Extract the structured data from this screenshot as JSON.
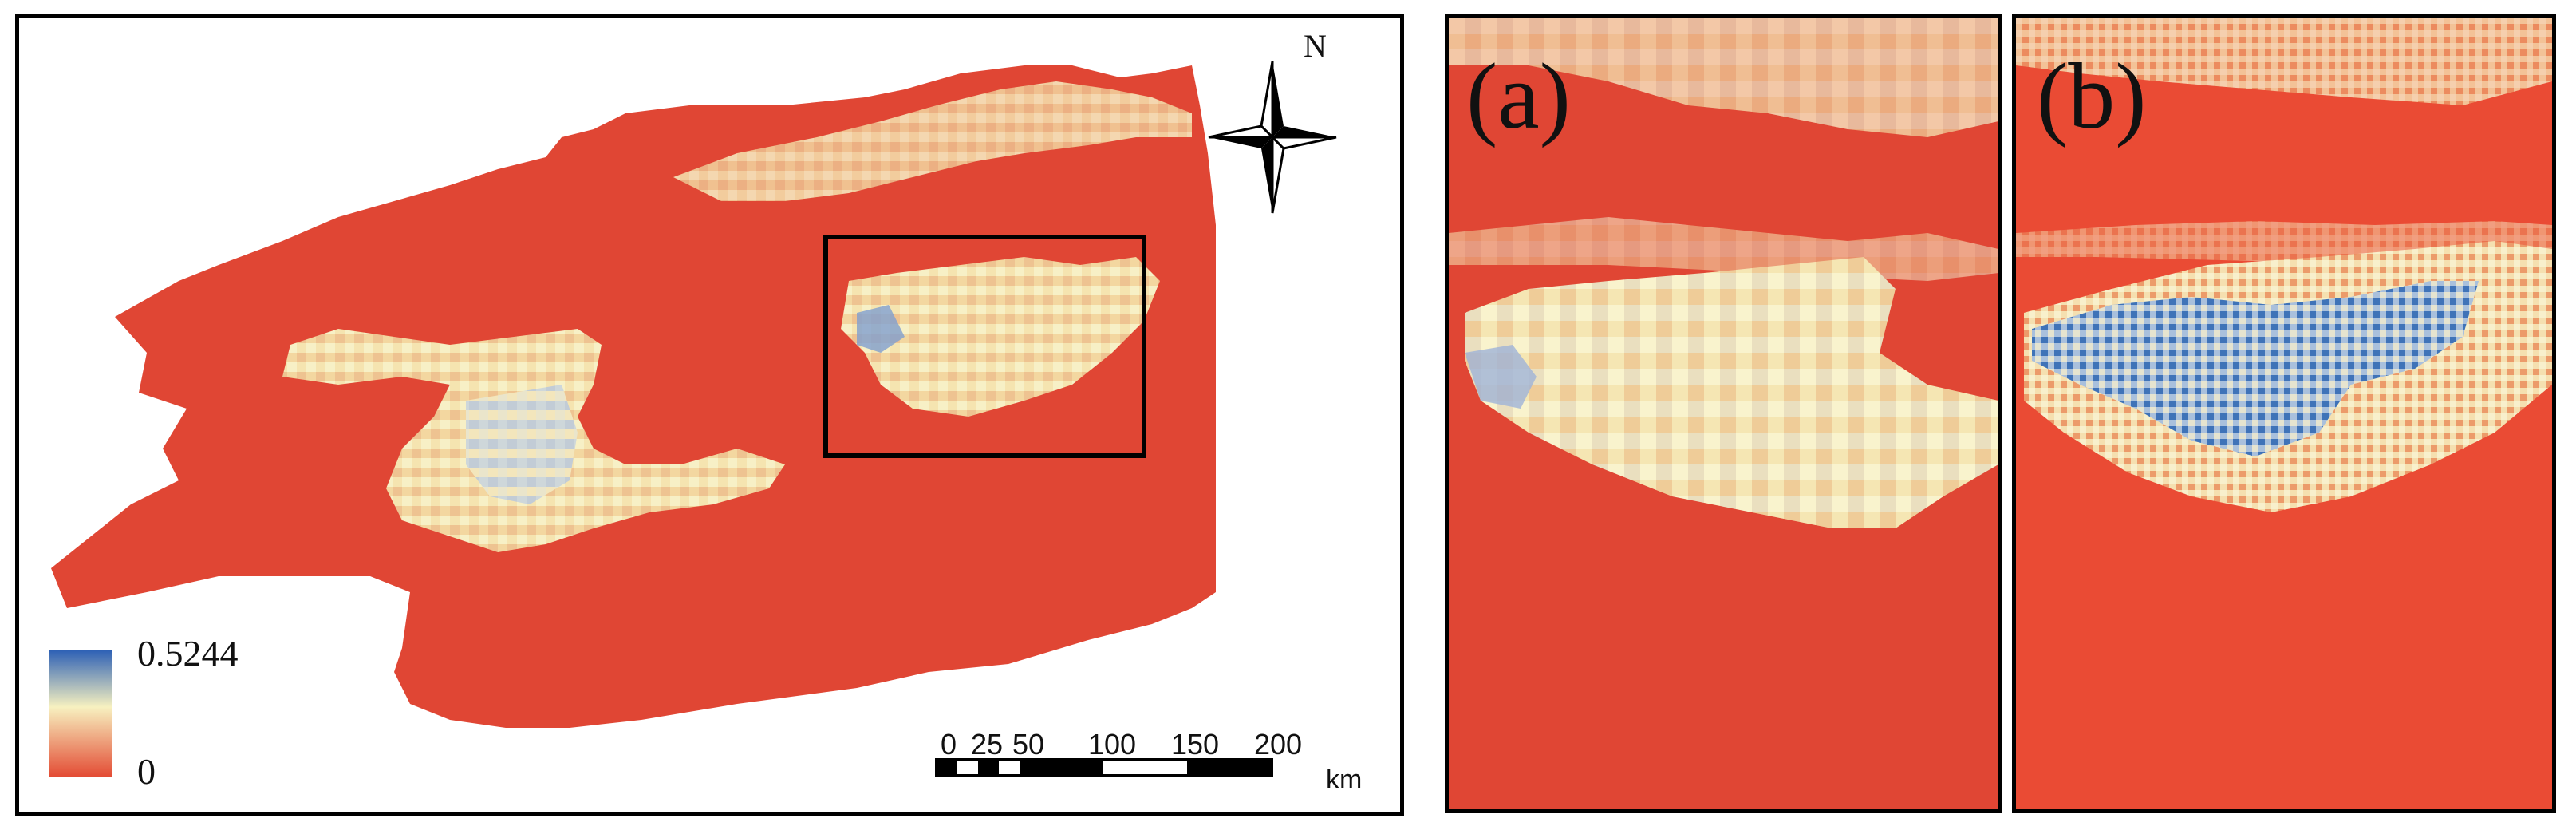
{
  "figure": {
    "legend": {
      "max_label": "0.5244",
      "min_label": "0",
      "max_value": 0.5244,
      "min_value": 0,
      "colors": [
        "#2b5fb5",
        "#f7f1c0",
        "#e34a33"
      ]
    },
    "north_arrow": {
      "label": "N"
    },
    "scale_bar": {
      "ticks": [
        "0",
        "25",
        "50",
        "100",
        "150",
        "200"
      ],
      "unit": "km"
    },
    "panels": [
      {
        "label": "(a)"
      },
      {
        "label": "(b)"
      }
    ],
    "colors": {
      "background_red": "#e04634",
      "highlight": "#f6eab5",
      "low_blue": "#5b86c4",
      "frame": "#000000"
    }
  }
}
